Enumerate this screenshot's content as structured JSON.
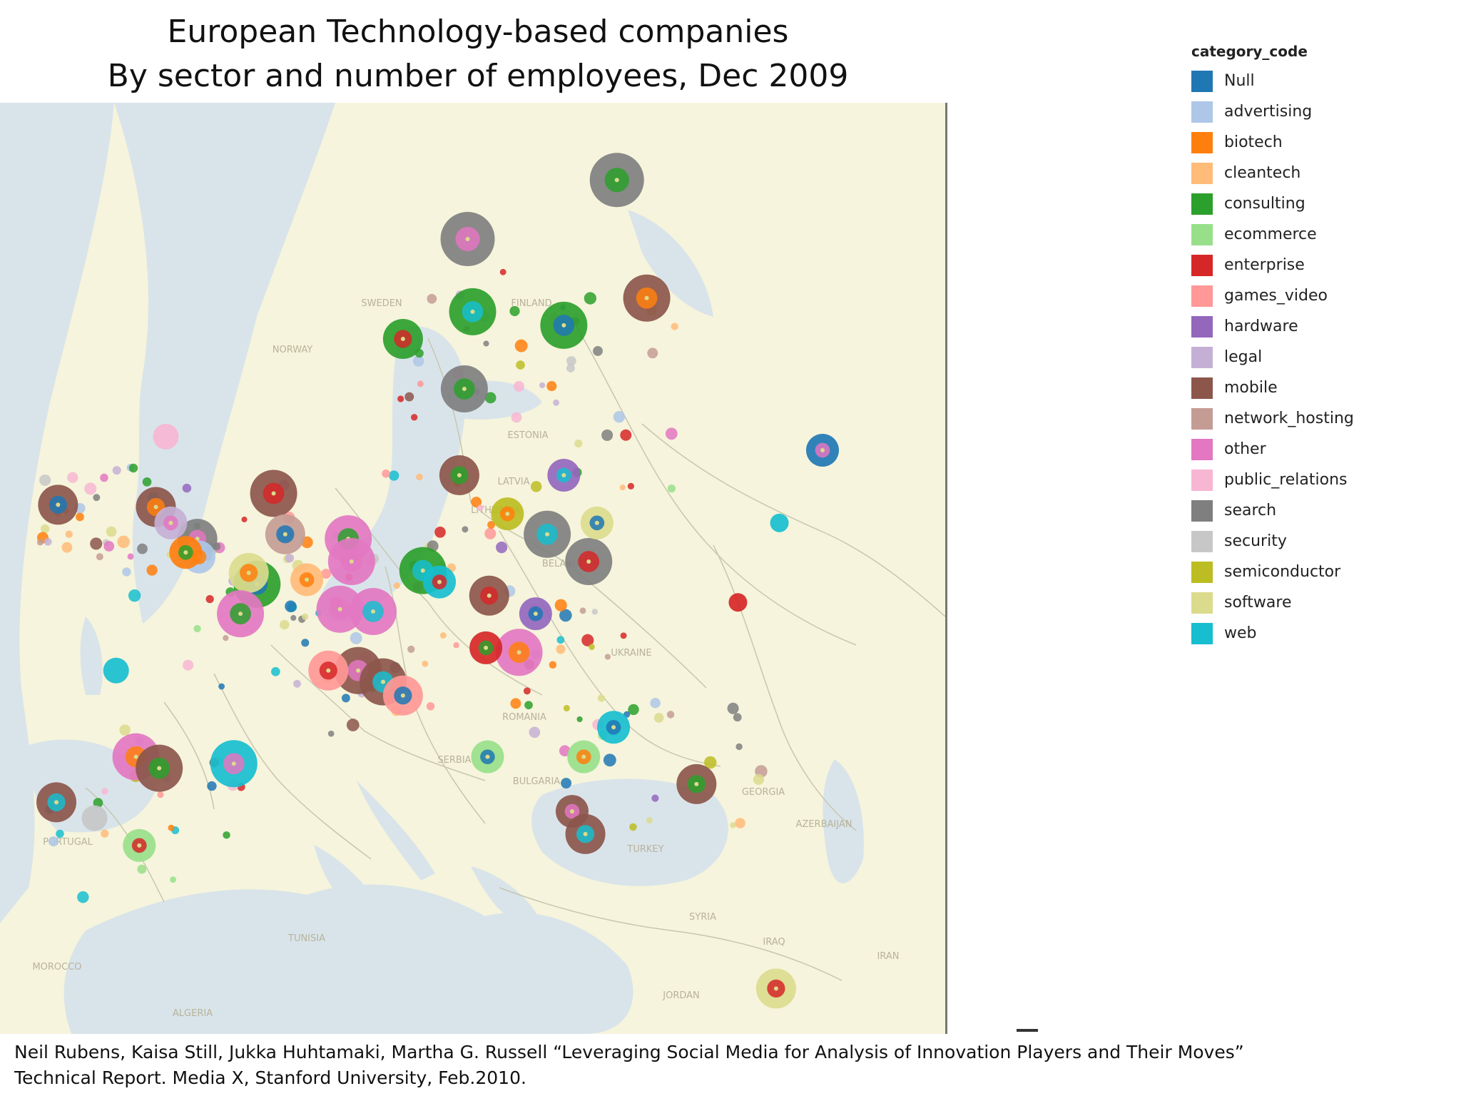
{
  "title": {
    "line1": "European Technology-based companies",
    "line2": "By sector and number of employees, Dec 2009"
  },
  "legend": {
    "title": "category_code",
    "items": [
      {
        "label": "Null",
        "color": "#1f77b4"
      },
      {
        "label": "advertising",
        "color": "#aec7e8"
      },
      {
        "label": "biotech",
        "color": "#ff7f0e"
      },
      {
        "label": "cleantech",
        "color": "#ffbb78"
      },
      {
        "label": "consulting",
        "color": "#2ca02c"
      },
      {
        "label": "ecommerce",
        "color": "#98df8a"
      },
      {
        "label": "enterprise",
        "color": "#d62728"
      },
      {
        "label": "games_video",
        "color": "#ff9896"
      },
      {
        "label": "hardware",
        "color": "#9467bd"
      },
      {
        "label": "legal",
        "color": "#c5b0d5"
      },
      {
        "label": "mobile",
        "color": "#8c564b"
      },
      {
        "label": "network_hosting",
        "color": "#c49c94"
      },
      {
        "label": "other",
        "color": "#e377c2"
      },
      {
        "label": "public_relations",
        "color": "#f7b6d2"
      },
      {
        "label": "search",
        "color": "#7f7f7f"
      },
      {
        "label": "security",
        "color": "#c7c7c7"
      },
      {
        "label": "semiconductor",
        "color": "#bcbd22"
      },
      {
        "label": "software",
        "color": "#dbdb8d"
      },
      {
        "label": "web",
        "color": "#17becf"
      }
    ]
  },
  "map": {
    "land_color": "#f6f4dc",
    "water_color": "#d9e4ea",
    "border_color": "#c9c6b0",
    "labels": [
      "SWEDEN",
      "FINLAND",
      "NORWAY",
      "ESTONIA",
      "LATVIA",
      "LITHUANIA",
      "BELARUS",
      "UKRAINE",
      "ROMANIA",
      "SERBIA",
      "BULGARIA",
      "GEORGIA",
      "AZERBAIJAN",
      "TURKEY",
      "SYRIA",
      "IRAQ",
      "IRAN",
      "JORDAN",
      "TUNISIA",
      "MOROCCO",
      "ALGERIA",
      "PORTUGAL"
    ],
    "markers": [
      {
        "cat": "search",
        "lon": 25.2,
        "lat": 67.6,
        "size": 6
      },
      {
        "cat": "search",
        "lon": 16.2,
        "lat": 65.0,
        "size": 6
      },
      {
        "cat": "consulting",
        "lon": 16.5,
        "lat": 61.8,
        "size": 5
      },
      {
        "cat": "consulting",
        "lon": 12.3,
        "lat": 60.6,
        "size": 4
      },
      {
        "cat": "consulting",
        "lon": 22.0,
        "lat": 61.2,
        "size": 5
      },
      {
        "cat": "mobile",
        "lon": 27.0,
        "lat": 62.4,
        "size": 5
      },
      {
        "cat": "search",
        "lon": 16.0,
        "lat": 58.4,
        "size": 5
      },
      {
        "cat": "Null",
        "lon": 37.6,
        "lat": 55.7,
        "size": 3
      },
      {
        "cat": "hardware",
        "lon": 22.0,
        "lat": 54.6,
        "size": 3
      },
      {
        "cat": "mobile",
        "lon": 4.5,
        "lat": 53.8,
        "size": 5
      },
      {
        "cat": "mobile",
        "lon": -8.5,
        "lat": 53.3,
        "size": 4
      },
      {
        "cat": "mobile",
        "lon": -2.6,
        "lat": 53.2,
        "size": 4
      },
      {
        "cat": "mobile",
        "lon": 15.7,
        "lat": 54.6,
        "size": 4
      },
      {
        "cat": "search",
        "lon": -0.1,
        "lat": 51.8,
        "size": 4
      },
      {
        "cat": "search",
        "lon": 21.0,
        "lat": 52.0,
        "size": 5
      },
      {
        "cat": "search",
        "lon": 23.5,
        "lat": 50.8,
        "size": 5
      },
      {
        "cat": "software",
        "lon": 24.0,
        "lat": 52.5,
        "size": 3
      },
      {
        "cat": "semiconductor",
        "lon": 18.6,
        "lat": 52.9,
        "size": 3
      },
      {
        "cat": "other",
        "lon": 9.0,
        "lat": 51.8,
        "size": 5
      },
      {
        "cat": "other",
        "lon": 9.2,
        "lat": 50.8,
        "size": 5
      },
      {
        "cat": "consulting",
        "lon": 13.5,
        "lat": 50.4,
        "size": 5
      },
      {
        "cat": "web",
        "lon": 14.5,
        "lat": 49.9,
        "size": 3
      },
      {
        "cat": "consulting",
        "lon": 3.5,
        "lat": 49.8,
        "size": 5
      },
      {
        "cat": "software",
        "lon": 3.0,
        "lat": 50.3,
        "size": 4
      },
      {
        "cat": "other",
        "lon": 2.5,
        "lat": 48.5,
        "size": 5
      },
      {
        "cat": "other",
        "lon": 8.5,
        "lat": 48.7,
        "size": 5
      },
      {
        "cat": "other",
        "lon": 10.5,
        "lat": 48.6,
        "size": 5
      },
      {
        "cat": "mobile",
        "lon": 17.5,
        "lat": 49.3,
        "size": 4
      },
      {
        "cat": "hardware",
        "lon": 20.3,
        "lat": 48.5,
        "size": 3
      },
      {
        "cat": "other",
        "lon": 19.3,
        "lat": 46.8,
        "size": 5
      },
      {
        "cat": "enterprise",
        "lon": 17.3,
        "lat": 47.0,
        "size": 3
      },
      {
        "cat": "mobile",
        "lon": 9.6,
        "lat": 46.0,
        "size": 5
      },
      {
        "cat": "mobile",
        "lon": 11.1,
        "lat": 45.5,
        "size": 5
      },
      {
        "cat": "games_video",
        "lon": 7.8,
        "lat": 46.0,
        "size": 4
      },
      {
        "cat": "games_video",
        "lon": 12.3,
        "lat": 44.9,
        "size": 4
      },
      {
        "cat": "other",
        "lon": -3.8,
        "lat": 42.2,
        "size": 5
      },
      {
        "cat": "mobile",
        "lon": -2.4,
        "lat": 41.7,
        "size": 5
      },
      {
        "cat": "web",
        "lon": 2.1,
        "lat": 41.9,
        "size": 5
      },
      {
        "cat": "mobile",
        "lon": -8.6,
        "lat": 40.2,
        "size": 4
      },
      {
        "cat": "ecommerce",
        "lon": -3.6,
        "lat": 38.3,
        "size": 3
      },
      {
        "cat": "web",
        "lon": 25.0,
        "lat": 43.5,
        "size": 3
      },
      {
        "cat": "ecommerce",
        "lon": 23.2,
        "lat": 42.2,
        "size": 3
      },
      {
        "cat": "mobile",
        "lon": 30.0,
        "lat": 41.0,
        "size": 4
      },
      {
        "cat": "mobile",
        "lon": 22.5,
        "lat": 39.8,
        "size": 3
      },
      {
        "cat": "mobile",
        "lon": 23.3,
        "lat": 38.8,
        "size": 4
      },
      {
        "cat": "software",
        "lon": 34.8,
        "lat": 32.0,
        "size": 4
      },
      {
        "cat": "ecommerce",
        "lon": 17.4,
        "lat": 42.2,
        "size": 3
      },
      {
        "cat": "advertising",
        "lon": 0.0,
        "lat": 51.0,
        "size": 3
      },
      {
        "cat": "biotech",
        "lon": -0.8,
        "lat": 51.2,
        "size": 3
      },
      {
        "cat": "legal",
        "lon": -1.7,
        "lat": 52.5,
        "size": 3
      },
      {
        "cat": "web",
        "lon": -5.0,
        "lat": 46.0,
        "size": 2
      },
      {
        "cat": "public_relations",
        "lon": -2.0,
        "lat": 56.3,
        "size": 2
      },
      {
        "cat": "network_hosting",
        "lon": 5.2,
        "lat": 52.0,
        "size": 4
      },
      {
        "cat": "cleantech",
        "lon": 6.5,
        "lat": 50.0,
        "size": 3
      },
      {
        "cat": "security",
        "lon": -6.3,
        "lat": 39.5,
        "size": 2
      },
      {
        "cat": "enterprise",
        "lon": 32.5,
        "lat": 49.0,
        "size": 1
      },
      {
        "cat": "web",
        "lon": 35.0,
        "lat": 52.5,
        "size": 1
      }
    ]
  },
  "caption": {
    "line1": "Neil Rubens, Kaisa Still, Jukka Huhtamaki, Martha G. Russell “Leveraging Social Media for Analysis of Innovation Players and Their Moves”",
    "line2": "Technical Report.  Media X, Stanford University, Feb.2010."
  }
}
